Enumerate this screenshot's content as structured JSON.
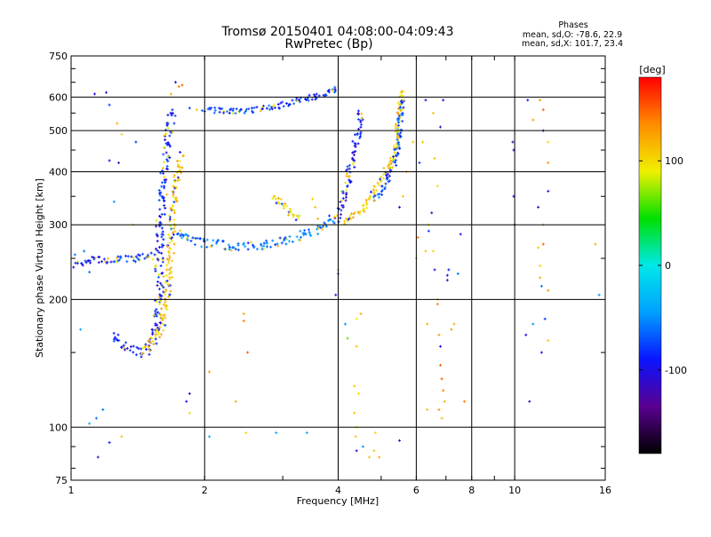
{
  "chart_data": {
    "type": "scatter",
    "title": "Tromsø 20150401 04:08:00-04:09:43",
    "subtitle": "RwPretec (Bp)",
    "xlabel": "Frequency [MHz]",
    "ylabel": "Stationary phase Virtual Height [km]",
    "xscale": "log",
    "yscale": "log",
    "xlim": [
      1,
      16
    ],
    "ylim": [
      75,
      750
    ],
    "x_ticks": [
      1,
      2,
      4,
      6,
      8,
      10,
      16
    ],
    "x_tick_labels": [
      "1",
      "2",
      "4",
      "6",
      "8",
      "10",
      "16"
    ],
    "y_ticks": [
      75,
      100,
      200,
      300,
      400,
      500,
      600,
      750
    ],
    "y_tick_labels": [
      "75",
      "100",
      "200",
      "300",
      "400",
      "500",
      "600",
      "750"
    ],
    "grid": true,
    "colorbar": {
      "label": "[deg]",
      "range": [
        -180,
        180
      ],
      "ticks": [
        -100,
        0,
        100
      ],
      "tick_labels": [
        "-100",
        "0",
        "100"
      ],
      "colormap": [
        "#000000",
        "#5a0090",
        "#0a14ff",
        "#00a0ff",
        "#00e8e8",
        "#00e000",
        "#f0f000",
        "#ff8c00",
        "#ff0000"
      ]
    },
    "stats": {
      "heading": "Phases",
      "o_mode": "mean, sd,O: -78.6, 22.9",
      "x_mode": "mean, sd,X: 101.7, 23.4"
    },
    "traces": [
      {
        "name": "",
        "phase": -90,
        "spread": 5,
        "x": [
          1.24,
          1.3,
          1.36,
          1.42,
          1.48,
          1.53,
          1.56,
          1.58,
          1.58,
          1.58,
          1.59,
          1.6,
          1.61,
          1.62,
          1.64,
          1.66,
          1.68,
          1.7
        ],
        "y": [
          165,
          158,
          152,
          150,
          152,
          160,
          180,
          210,
          240,
          270,
          300,
          330,
          370,
          400,
          440,
          480,
          520,
          560
        ]
      },
      {
        "name": "",
        "phase": 110,
        "spread": 4,
        "x": [
          1.45,
          1.52,
          1.58,
          1.62,
          1.65,
          1.67,
          1.68,
          1.69,
          1.7,
          1.72,
          1.75,
          1.78
        ],
        "y": [
          150,
          158,
          168,
          185,
          210,
          240,
          270,
          300,
          340,
          370,
          410,
          440
        ]
      },
      {
        "name": "",
        "phase": -60,
        "spread": 5,
        "x": [
          1.7,
          1.85,
          2.0,
          2.2,
          2.4,
          2.6,
          2.8,
          3.0,
          3.2,
          3.4,
          3.6,
          3.75,
          3.85,
          3.92
        ],
        "y": [
          290,
          278,
          272,
          268,
          266,
          267,
          270,
          274,
          280,
          286,
          292,
          298,
          305,
          312
        ]
      },
      {
        "name": "",
        "phase": -85,
        "spread": 4,
        "x": [
          1.0,
          1.05,
          1.1,
          1.2,
          1.3,
          1.4,
          1.5,
          1.55
        ],
        "y": [
          240,
          245,
          248,
          248,
          248,
          250,
          252,
          255
        ]
      },
      {
        "name": "",
        "phase": -95,
        "spread": 4,
        "x": [
          3.95,
          4.0,
          4.05,
          4.1,
          4.15,
          4.2,
          4.25,
          4.3,
          4.35,
          4.4,
          4.45,
          4.5
        ],
        "y": [
          310,
          320,
          330,
          340,
          360,
          380,
          400,
          420,
          450,
          480,
          520,
          560
        ]
      },
      {
        "name": "",
        "phase": 110,
        "spread": 3,
        "x": [
          4.1,
          4.3,
          4.5,
          4.7,
          4.9,
          5.1,
          5.3,
          5.4,
          5.45,
          5.5,
          5.52,
          5.55
        ],
        "y": [
          305,
          315,
          325,
          345,
          370,
          400,
          430,
          460,
          500,
          540,
          580,
          620
        ]
      },
      {
        "name": "",
        "phase": -70,
        "spread": 3,
        "x": [
          4.8,
          5.0,
          5.2,
          5.35,
          5.45,
          5.52,
          5.56
        ],
        "y": [
          340,
          360,
          390,
          420,
          460,
          520,
          600
        ]
      },
      {
        "name": "",
        "phase": -80,
        "spread": 3,
        "x": [
          2.0,
          2.3,
          2.6,
          2.9,
          3.2,
          3.5,
          3.8,
          4.0
        ],
        "y": [
          560,
          555,
          560,
          570,
          585,
          600,
          615,
          630
        ]
      },
      {
        "name": "",
        "phase": 100,
        "spread": 3,
        "x": [
          2.85,
          3.0,
          3.1,
          3.2,
          3.3
        ],
        "y": [
          350,
          335,
          322,
          315,
          310
        ]
      }
    ],
    "scatter_points": [
      {
        "x": 1.13,
        "y": 610,
        "phase": -100
      },
      {
        "x": 1.2,
        "y": 615,
        "phase": -110
      },
      {
        "x": 1.22,
        "y": 575,
        "phase": -80
      },
      {
        "x": 1.27,
        "y": 520,
        "phase": 120
      },
      {
        "x": 1.3,
        "y": 490,
        "phase": 100
      },
      {
        "x": 1.22,
        "y": 425,
        "phase": -100
      },
      {
        "x": 1.28,
        "y": 420,
        "phase": -120
      },
      {
        "x": 1.4,
        "y": 470,
        "phase": -80
      },
      {
        "x": 1.85,
        "y": 565,
        "phase": -80
      },
      {
        "x": 1.92,
        "y": 560,
        "phase": 110
      },
      {
        "x": 1.72,
        "y": 650,
        "phase": -100
      },
      {
        "x": 1.75,
        "y": 635,
        "phase": 140
      },
      {
        "x": 1.78,
        "y": 640,
        "phase": 150
      },
      {
        "x": 1.68,
        "y": 610,
        "phase": 120
      },
      {
        "x": 2.45,
        "y": 185,
        "phase": 120
      },
      {
        "x": 2.45,
        "y": 178,
        "phase": 140
      },
      {
        "x": 2.5,
        "y": 150,
        "phase": 150
      },
      {
        "x": 2.05,
        "y": 135,
        "phase": 130
      },
      {
        "x": 2.35,
        "y": 115,
        "phase": 120
      },
      {
        "x": 1.85,
        "y": 120,
        "phase": -110
      },
      {
        "x": 1.82,
        "y": 115,
        "phase": -100
      },
      {
        "x": 1.85,
        "y": 108,
        "phase": 100
      },
      {
        "x": 1.18,
        "y": 110,
        "phase": -60
      },
      {
        "x": 1.14,
        "y": 105,
        "phase": -60
      },
      {
        "x": 1.1,
        "y": 102,
        "phase": -40
      },
      {
        "x": 1.22,
        "y": 92,
        "phase": -90
      },
      {
        "x": 1.3,
        "y": 95,
        "phase": 110
      },
      {
        "x": 1.15,
        "y": 85,
        "phase": -120
      },
      {
        "x": 2.05,
        "y": 95,
        "phase": -40
      },
      {
        "x": 2.48,
        "y": 97,
        "phase": 100
      },
      {
        "x": 2.9,
        "y": 97,
        "phase": -40
      },
      {
        "x": 3.4,
        "y": 97,
        "phase": -40
      },
      {
        "x": 1.05,
        "y": 170,
        "phase": -40
      },
      {
        "x": 1.07,
        "y": 260,
        "phase": -60
      },
      {
        "x": 1.1,
        "y": 232,
        "phase": -60
      },
      {
        "x": 1.02,
        "y": 255,
        "phase": -60
      },
      {
        "x": 1.25,
        "y": 340,
        "phase": -50
      },
      {
        "x": 1.38,
        "y": 300,
        "phase": 110
      },
      {
        "x": 3.95,
        "y": 205,
        "phase": -100
      },
      {
        "x": 4.0,
        "y": 235,
        "phase": 130
      },
      {
        "x": 4.0,
        "y": 230,
        "phase": -70
      },
      {
        "x": 4.4,
        "y": 180,
        "phase": 90
      },
      {
        "x": 4.5,
        "y": 185,
        "phase": 120
      },
      {
        "x": 4.15,
        "y": 175,
        "phase": -50
      },
      {
        "x": 4.2,
        "y": 162,
        "phase": 60
      },
      {
        "x": 4.4,
        "y": 155,
        "phase": 110
      },
      {
        "x": 4.35,
        "y": 125,
        "phase": 110
      },
      {
        "x": 4.45,
        "y": 120,
        "phase": 100
      },
      {
        "x": 4.35,
        "y": 108,
        "phase": 110
      },
      {
        "x": 4.4,
        "y": 100,
        "phase": 100
      },
      {
        "x": 4.38,
        "y": 95,
        "phase": 110
      },
      {
        "x": 4.4,
        "y": 88,
        "phase": -100
      },
      {
        "x": 4.55,
        "y": 90,
        "phase": -50
      },
      {
        "x": 4.7,
        "y": 85,
        "phase": 110
      },
      {
        "x": 4.82,
        "y": 88,
        "phase": 110
      },
      {
        "x": 4.95,
        "y": 85,
        "phase": 120
      },
      {
        "x": 4.85,
        "y": 97,
        "phase": 100
      },
      {
        "x": 5.5,
        "y": 93,
        "phase": -100
      },
      {
        "x": 6.0,
        "y": 250,
        "phase": 120
      },
      {
        "x": 6.05,
        "y": 280,
        "phase": 140
      },
      {
        "x": 6.3,
        "y": 260,
        "phase": 110
      },
      {
        "x": 6.4,
        "y": 290,
        "phase": -80
      },
      {
        "x": 6.55,
        "y": 260,
        "phase": 100
      },
      {
        "x": 6.6,
        "y": 235,
        "phase": -100
      },
      {
        "x": 6.7,
        "y": 200,
        "phase": 110
      },
      {
        "x": 6.7,
        "y": 195,
        "phase": 140
      },
      {
        "x": 6.75,
        "y": 165,
        "phase": 130
      },
      {
        "x": 6.8,
        "y": 155,
        "phase": -100
      },
      {
        "x": 6.8,
        "y": 140,
        "phase": 150
      },
      {
        "x": 6.85,
        "y": 130,
        "phase": 150
      },
      {
        "x": 6.9,
        "y": 122,
        "phase": 140
      },
      {
        "x": 6.75,
        "y": 110,
        "phase": 130
      },
      {
        "x": 6.95,
        "y": 115,
        "phase": 120
      },
      {
        "x": 6.85,
        "y": 105,
        "phase": 110
      },
      {
        "x": 6.35,
        "y": 175,
        "phase": 120
      },
      {
        "x": 6.35,
        "y": 110,
        "phase": 110
      },
      {
        "x": 7.05,
        "y": 228,
        "phase": -100
      },
      {
        "x": 7.05,
        "y": 222,
        "phase": -120
      },
      {
        "x": 7.1,
        "y": 235,
        "phase": -90
      },
      {
        "x": 7.2,
        "y": 170,
        "phase": 130
      },
      {
        "x": 7.3,
        "y": 175,
        "phase": 120
      },
      {
        "x": 7.45,
        "y": 230,
        "phase": -60
      },
      {
        "x": 7.55,
        "y": 285,
        "phase": -100
      },
      {
        "x": 7.7,
        "y": 115,
        "phase": 140
      },
      {
        "x": 6.3,
        "y": 590,
        "phase": -110
      },
      {
        "x": 6.55,
        "y": 550,
        "phase": 110
      },
      {
        "x": 6.8,
        "y": 510,
        "phase": -120
      },
      {
        "x": 6.9,
        "y": 590,
        "phase": -100
      },
      {
        "x": 6.6,
        "y": 430,
        "phase": 110
      },
      {
        "x": 6.7,
        "y": 370,
        "phase": 100
      },
      {
        "x": 6.5,
        "y": 320,
        "phase": -120
      },
      {
        "x": 6.4,
        "y": 300,
        "phase": 100
      },
      {
        "x": 6.1,
        "y": 420,
        "phase": -80
      },
      {
        "x": 6.2,
        "y": 470,
        "phase": 110
      },
      {
        "x": 9.9,
        "y": 470,
        "phase": -120
      },
      {
        "x": 9.95,
        "y": 450,
        "phase": -100
      },
      {
        "x": 9.95,
        "y": 350,
        "phase": -100
      },
      {
        "x": 10.0,
        "y": 300,
        "phase": -100
      },
      {
        "x": 10.7,
        "y": 590,
        "phase": -100
      },
      {
        "x": 11.0,
        "y": 530,
        "phase": 130
      },
      {
        "x": 11.4,
        "y": 590,
        "phase": 130
      },
      {
        "x": 11.6,
        "y": 500,
        "phase": -100
      },
      {
        "x": 11.9,
        "y": 470,
        "phase": 100
      },
      {
        "x": 11.9,
        "y": 420,
        "phase": 130
      },
      {
        "x": 11.9,
        "y": 360,
        "phase": -100
      },
      {
        "x": 11.6,
        "y": 300,
        "phase": 120
      },
      {
        "x": 11.3,
        "y": 265,
        "phase": 110
      },
      {
        "x": 11.4,
        "y": 240,
        "phase": 100
      },
      {
        "x": 11.4,
        "y": 225,
        "phase": 120
      },
      {
        "x": 11.5,
        "y": 215,
        "phase": -60
      },
      {
        "x": 11.6,
        "y": 270,
        "phase": 150
      },
      {
        "x": 11.9,
        "y": 210,
        "phase": 130
      },
      {
        "x": 11.7,
        "y": 180,
        "phase": -80
      },
      {
        "x": 11.9,
        "y": 160,
        "phase": 110
      },
      {
        "x": 11.5,
        "y": 150,
        "phase": -100
      },
      {
        "x": 11.0,
        "y": 175,
        "phase": -50
      },
      {
        "x": 10.6,
        "y": 165,
        "phase": -100
      },
      {
        "x": 10.8,
        "y": 115,
        "phase": -120
      },
      {
        "x": 11.3,
        "y": 330,
        "phase": -120
      },
      {
        "x": 11.6,
        "y": 560,
        "phase": 150
      },
      {
        "x": 15.2,
        "y": 270,
        "phase": 120
      },
      {
        "x": 15.5,
        "y": 205,
        "phase": -50
      },
      {
        "x": 5.9,
        "y": 470,
        "phase": 110
      },
      {
        "x": 5.7,
        "y": 400,
        "phase": 120
      },
      {
        "x": 5.6,
        "y": 350,
        "phase": 110
      },
      {
        "x": 5.5,
        "y": 330,
        "phase": -90
      },
      {
        "x": 3.6,
        "y": 310,
        "phase": 120
      },
      {
        "x": 3.55,
        "y": 330,
        "phase": 110
      },
      {
        "x": 3.5,
        "y": 345,
        "phase": 100
      }
    ]
  }
}
